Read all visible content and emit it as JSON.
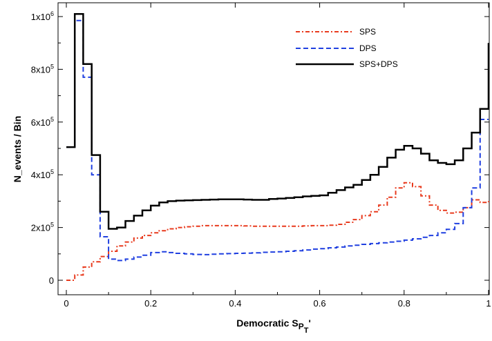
{
  "chart_data": {
    "type": "line",
    "step": true,
    "xlabel_prefix": "Democratic S",
    "xlabel_sub1": "P",
    "xlabel_sub2": "T",
    "xlabel_suffix": "'",
    "ylabel": "N_events / Bin",
    "xlim": [
      0,
      1
    ],
    "ylim": [
      -50000,
      1050000
    ],
    "x_ticks": [
      {
        "v": 0,
        "label": "0"
      },
      {
        "v": 0.2,
        "label": "0.2"
      },
      {
        "v": 0.4,
        "label": "0.4"
      },
      {
        "v": 0.6,
        "label": "0.6"
      },
      {
        "v": 0.8,
        "label": "0.8"
      },
      {
        "v": 1,
        "label": "1"
      }
    ],
    "y_ticks": [
      {
        "v": 0,
        "mant": "0",
        "exp": ""
      },
      {
        "v": 200000,
        "mant": "2x10",
        "exp": "5"
      },
      {
        "v": 400000,
        "mant": "4x10",
        "exp": "5"
      },
      {
        "v": 600000,
        "mant": "6x10",
        "exp": "5"
      },
      {
        "v": 800000,
        "mant": "8x10",
        "exp": "5"
      },
      {
        "v": 1000000,
        "mant": "1x10",
        "exp": "6"
      }
    ],
    "grid": false,
    "legend_position": "top-right",
    "bin_edges": [
      0,
      0.02,
      0.04,
      0.06,
      0.08,
      0.1,
      0.12,
      0.14,
      0.16,
      0.18,
      0.2,
      0.22,
      0.24,
      0.26,
      0.28,
      0.3,
      0.32,
      0.34,
      0.36,
      0.38,
      0.4,
      0.42,
      0.44,
      0.46,
      0.48,
      0.5,
      0.52,
      0.54,
      0.56,
      0.58,
      0.6,
      0.62,
      0.64,
      0.66,
      0.68,
      0.7,
      0.72,
      0.74,
      0.76,
      0.78,
      0.8,
      0.82,
      0.84,
      0.86,
      0.88,
      0.9,
      0.92,
      0.94,
      0.96,
      0.98,
      1.0
    ],
    "series": [
      {
        "name": "SPS",
        "color": "#e8391c",
        "dash": "6 3 2 3",
        "values": [
          0,
          20000,
          50000,
          70000,
          90000,
          110000,
          130000,
          145000,
          160000,
          170000,
          180000,
          188000,
          195000,
          200000,
          203000,
          205000,
          207000,
          207000,
          207000,
          207000,
          207000,
          206000,
          205000,
          205000,
          205000,
          205000,
          205000,
          205000,
          206000,
          207000,
          207000,
          209000,
          212000,
          220000,
          230000,
          245000,
          260000,
          285000,
          315000,
          350000,
          370000,
          355000,
          320000,
          285000,
          265000,
          255000,
          258000,
          275000,
          305000,
          295000
        ]
      },
      {
        "name": "DPS",
        "color": "#1f3fe0",
        "dash": "7 4",
        "values": [
          505000,
          985000,
          770000,
          400000,
          165000,
          80000,
          75000,
          80000,
          88000,
          95000,
          105000,
          108000,
          105000,
          102000,
          100000,
          98000,
          97000,
          99000,
          100000,
          101000,
          102000,
          103000,
          104000,
          106000,
          107000,
          108000,
          110000,
          112000,
          115000,
          118000,
          120000,
          123000,
          126000,
          130000,
          133000,
          136000,
          139000,
          142000,
          145000,
          148000,
          152000,
          157000,
          163000,
          170000,
          180000,
          193000,
          215000,
          275000,
          350000,
          610000
        ]
      },
      {
        "name": "SPS+DPS",
        "color": "#000000",
        "dash": "",
        "values": [
          505000,
          1010000,
          820000,
          475000,
          260000,
          195000,
          200000,
          225000,
          245000,
          265000,
          283000,
          295000,
          300000,
          302000,
          303000,
          304000,
          305000,
          306000,
          307000,
          307000,
          307000,
          306000,
          305000,
          305000,
          308000,
          310000,
          312000,
          315000,
          318000,
          320000,
          322000,
          332000,
          342000,
          352000,
          362000,
          380000,
          400000,
          430000,
          465000,
          495000,
          510000,
          500000,
          480000,
          455000,
          445000,
          440000,
          455000,
          500000,
          560000,
          650000
        ]
      }
    ],
    "tail_values": [
      300000,
      610000,
      900000
    ]
  }
}
